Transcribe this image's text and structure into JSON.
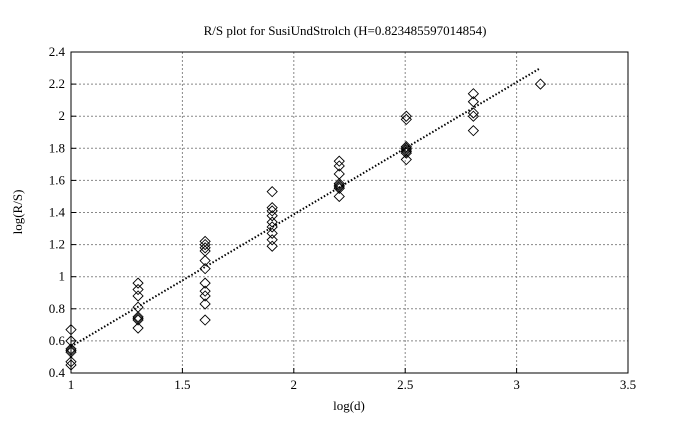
{
  "chart_data": {
    "type": "scatter",
    "title": "R/S plot for SusiUndStrolch (H=0.823485597014854)",
    "x_label": "log(d)",
    "y_label": "log(R/S)",
    "xlim": [
      1,
      3.5
    ],
    "ylim": [
      0.4,
      2.4
    ],
    "xticks": [
      1,
      1.5,
      2,
      2.5,
      3,
      3.5
    ],
    "yticks": [
      0.4,
      0.6,
      0.8,
      1,
      1.2,
      1.4,
      1.6,
      1.8,
      2,
      2.2,
      2.4
    ],
    "grid": true,
    "color": "#000000",
    "points": {
      "x": [
        1,
        1,
        1,
        1,
        1,
        1,
        1,
        1.301,
        1.301,
        1.301,
        1.301,
        1.301,
        1.301,
        1.301,
        1.301,
        1.602,
        1.602,
        1.602,
        1.602,
        1.602,
        1.602,
        1.602,
        1.602,
        1.602,
        1.602,
        1.602,
        1.903,
        1.903,
        1.903,
        1.903,
        1.903,
        1.903,
        1.903,
        1.903,
        1.903,
        2.204,
        2.204,
        2.204,
        2.204,
        2.204,
        2.204,
        2.204,
        2.204,
        2.505,
        2.505,
        2.505,
        2.505,
        2.505,
        2.505,
        2.505,
        2.505,
        2.806,
        2.806,
        2.806,
        2.806,
        2.806,
        3.107
      ],
      "y": [
        0.67,
        0.6,
        0.55,
        0.54,
        0.53,
        0.47,
        0.45,
        0.96,
        0.92,
        0.88,
        0.81,
        0.75,
        0.74,
        0.73,
        0.68,
        1.22,
        1.2,
        1.18,
        1.16,
        1.1,
        1.05,
        0.96,
        0.91,
        0.88,
        0.83,
        0.73,
        1.53,
        1.43,
        1.41,
        1.38,
        1.34,
        1.31,
        1.27,
        1.23,
        1.19,
        1.72,
        1.69,
        1.64,
        1.58,
        1.57,
        1.56,
        1.55,
        1.5,
        2,
        1.98,
        1.81,
        1.8,
        1.79,
        1.78,
        1.77,
        1.73,
        2.14,
        2.09,
        2.02,
        2,
        1.91,
        2.2
      ]
    },
    "fit": {
      "x": [
        1,
        3.107
      ],
      "y": [
        0.565,
        2.3
      ]
    }
  }
}
